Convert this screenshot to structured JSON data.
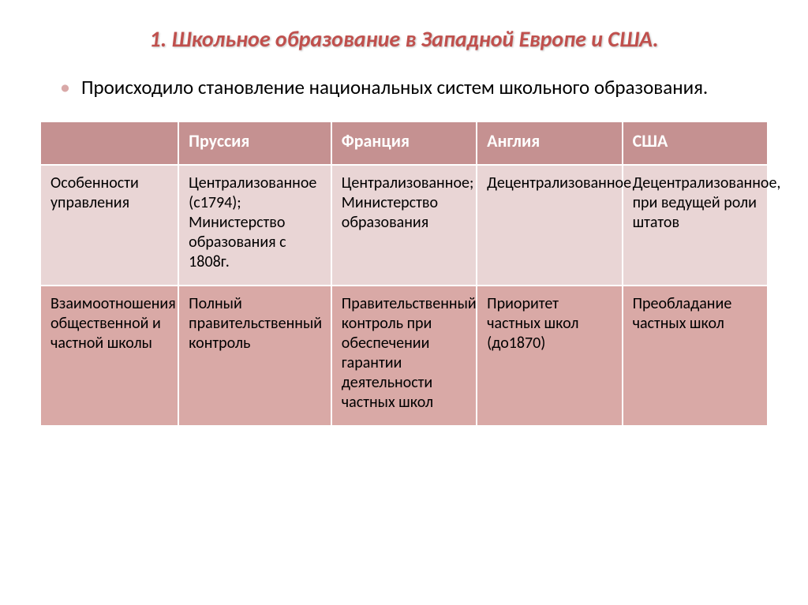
{
  "title": "1. Школьное образование в Западной Европе и  США.",
  "bullet": "Происходило становление национальных систем школьного образования.",
  "table": {
    "headers": [
      "",
      "Пруссия",
      "Франция",
      "Англия",
      "США"
    ],
    "rows": [
      {
        "label": "Особенности управления",
        "cells": [
          "Централизованное (с1794); Министерство образования с 1808г.",
          "Централизованное; Министерство образования",
          "Децентрализованное",
          "Децентрализованное, при ведущей роли штатов"
        ]
      },
      {
        "label": "Взаимоотношения общественной и частной школы",
        "cells": [
          "Полный правительственный контроль",
          "Правительственный контроль при обеспечении гарантии деятельности частных школ",
          "Приоритет частных школ (до1870)",
          "Преобладание частных школ"
        ]
      }
    ]
  },
  "colors": {
    "title": "#c0504d",
    "header_bg": "#c59191",
    "row1_bg": "#e9d5d5",
    "row2_bg": "#d9a9a6",
    "border": "#ffffff",
    "text": "#000000",
    "bullet": "#d9a9a8"
  },
  "fonts": {
    "title_size_pt": 21,
    "bullet_size_pt": 19,
    "header_size_pt": 17,
    "cell_size_pt": 15
  }
}
